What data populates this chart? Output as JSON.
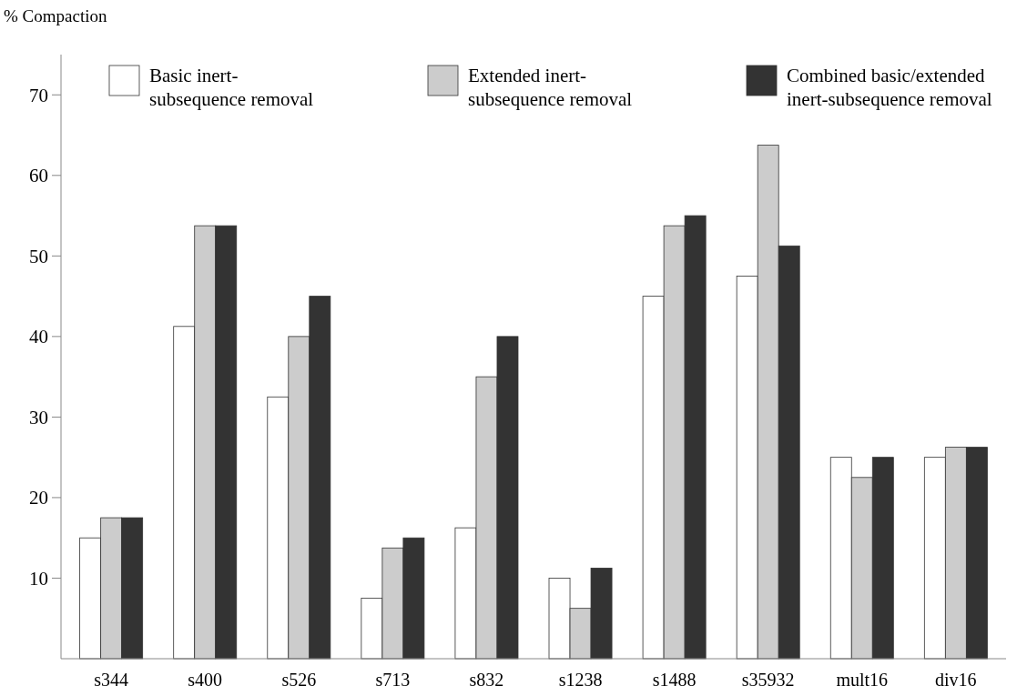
{
  "chart_data": {
    "type": "bar",
    "ylabel": "% Compaction",
    "categories": [
      "s344",
      "s400",
      "s526",
      "s713",
      "s832",
      "s1238",
      "s1488",
      "s35932",
      "mult16",
      "div16"
    ],
    "series": [
      {
        "name": "Basic inert-\nsubsequence removal",
        "color": "#ffffff",
        "values": [
          15,
          41.25,
          32.5,
          7.5,
          16.25,
          10,
          45,
          47.5,
          25,
          25
        ]
      },
      {
        "name": "Extended inert-\nsubsequence removal",
        "color": "#cccccc",
        "values": [
          17.5,
          53.75,
          40,
          13.75,
          35,
          6.25,
          53.75,
          63.75,
          22.5,
          26.25
        ]
      },
      {
        "name": "Combined basic/extended\ninert-subsequence removal",
        "color": "#333333",
        "values": [
          17.5,
          53.75,
          45,
          15,
          40,
          11.25,
          55,
          51.25,
          25,
          26.25
        ]
      }
    ],
    "ylim": [
      0,
      75
    ],
    "yticks": [
      10,
      20,
      30,
      40,
      50,
      60,
      70
    ],
    "grid": false,
    "legend": "top"
  }
}
